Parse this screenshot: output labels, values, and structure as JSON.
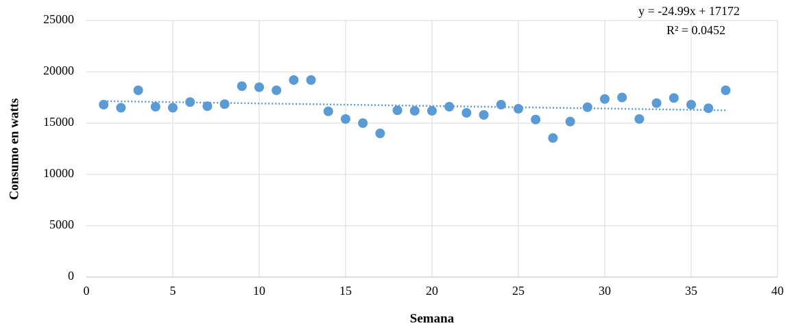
{
  "chart_data": {
    "type": "scatter",
    "x_label": "Semana",
    "y_label": "Consumo en watts",
    "x": [
      1,
      2,
      3,
      4,
      5,
      6,
      7,
      8,
      9,
      10,
      11,
      12,
      13,
      14,
      15,
      16,
      17,
      18,
      19,
      20,
      21,
      22,
      23,
      24,
      25,
      26,
      27,
      28,
      29,
      30,
      31,
      32,
      33,
      34,
      35,
      36,
      37
    ],
    "series": [
      {
        "name": "Consumo",
        "color": "#5b9bd5",
        "values": [
          16800,
          16500,
          18200,
          16600,
          16500,
          17050,
          16650,
          16850,
          18600,
          18500,
          18200,
          19200,
          19200,
          16150,
          15400,
          15000,
          14000,
          16250,
          16200,
          16200,
          16600,
          16000,
          15800,
          16800,
          16400,
          15350,
          13550,
          15150,
          16550,
          17350,
          17500,
          15400,
          16950,
          17450,
          16800,
          16450,
          18200
        ]
      }
    ],
    "trendline": {
      "equation": "y = -24.99x + 17172",
      "r2_label": "R² = 0.0452",
      "slope": -24.99,
      "intercept": 17172
    },
    "xlim": [
      0,
      40
    ],
    "xticks": [
      0,
      5,
      10,
      15,
      20,
      25,
      30,
      35,
      40
    ],
    "ylim": [
      0,
      25000
    ],
    "yticks": [
      0,
      5000,
      10000,
      15000,
      20000,
      25000
    ],
    "grid": true
  }
}
